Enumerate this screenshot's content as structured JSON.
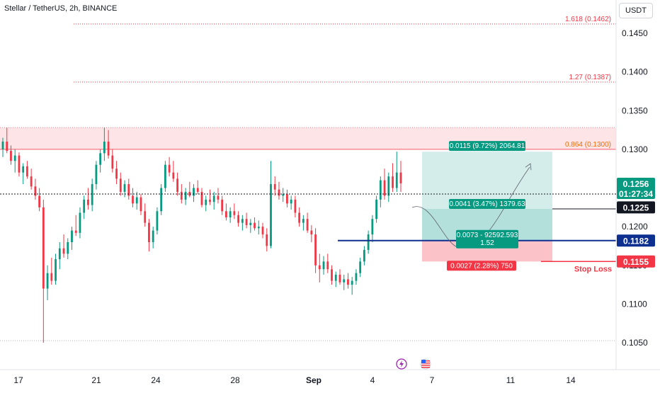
{
  "header": {
    "title": "Stellar / TetherUS, 2h, BINANCE",
    "currency": "USDT"
  },
  "colors": {
    "up": "#089981",
    "down": "#f23645",
    "fib": "#f23645",
    "fib_label_orange": "#ef6c00",
    "target_zone": "#26a69a",
    "stop_zone": "#f23645",
    "entry_line": "#0d2f8f",
    "axis_text": "#131722",
    "grid": "#f0f3fa"
  },
  "chart_data": {
    "type": "candlestick",
    "x_ticks": [
      "17",
      "21",
      "24",
      "28",
      "Sep",
      "4",
      "7",
      "11",
      "14"
    ],
    "y_ticks": [
      "0.1450",
      "0.1400",
      "0.1350",
      "0.1300",
      "0.1250",
      "0.1200",
      "0.1150",
      "0.1100",
      "0.1050"
    ],
    "ylim": [
      0.101,
      0.148
    ],
    "fib_levels": [
      {
        "label": "1.618 (0.1462)",
        "value": 0.1462
      },
      {
        "label": "1.27 (0.1387)",
        "value": 0.1387
      },
      {
        "label": "0.864 (0.1300)",
        "value": 0.13
      }
    ],
    "supply_zone": {
      "from": 0.13,
      "to": 0.1328
    },
    "current_price": {
      "value": 0.1256,
      "label": "0.1256",
      "countdown": "01:27:34"
    },
    "price_markers": [
      {
        "label": "0.1225",
        "value": 0.1225,
        "style": "dark"
      },
      {
        "label": "0.1182",
        "value": 0.1182,
        "style": "blue"
      },
      {
        "label": "0.1155",
        "value": 0.1155,
        "style": "red"
      }
    ],
    "stop_loss_label": "Stop Loss",
    "position": {
      "entry": 0.1182,
      "target": 0.1297,
      "stop": 0.1155,
      "mid": 0.1223,
      "target_label": "0.0115 (9.72%) 2064.81",
      "mid_label": "0.0041 (3.47%) 1379.63",
      "center_label_1": "0.0073 - 92592.593",
      "center_label_2": "1.52",
      "stop_label": "0.0027 (2.28%) 750"
    },
    "candles": [
      [
        0.13,
        0.1315,
        0.129,
        0.131
      ],
      [
        0.131,
        0.1328,
        0.1295,
        0.1298
      ],
      [
        0.1298,
        0.1305,
        0.128,
        0.1285
      ],
      [
        0.1285,
        0.13,
        0.127,
        0.1292
      ],
      [
        0.1292,
        0.1296,
        0.1265,
        0.127
      ],
      [
        0.127,
        0.1282,
        0.1255,
        0.1278
      ],
      [
        0.1278,
        0.1285,
        0.1262,
        0.1265
      ],
      [
        0.1265,
        0.1275,
        0.1248,
        0.1252
      ],
      [
        0.1252,
        0.1262,
        0.1235,
        0.124
      ],
      [
        0.124,
        0.125,
        0.122,
        0.1225
      ],
      [
        0.1225,
        0.1235,
        0.105,
        0.112
      ],
      [
        0.112,
        0.115,
        0.1105,
        0.114
      ],
      [
        0.114,
        0.116,
        0.1125,
        0.113
      ],
      [
        0.113,
        0.1165,
        0.1125,
        0.1158
      ],
      [
        0.1158,
        0.118,
        0.1145,
        0.1172
      ],
      [
        0.1172,
        0.119,
        0.116,
        0.1165
      ],
      [
        0.1165,
        0.1185,
        0.1158,
        0.118
      ],
      [
        0.118,
        0.12,
        0.117,
        0.1195
      ],
      [
        0.1195,
        0.1215,
        0.1188,
        0.1192
      ],
      [
        0.1192,
        0.1225,
        0.1185,
        0.1218
      ],
      [
        0.1218,
        0.124,
        0.121,
        0.1235
      ],
      [
        0.1235,
        0.125,
        0.1222,
        0.1228
      ],
      [
        0.1228,
        0.1262,
        0.122,
        0.1255
      ],
      [
        0.1255,
        0.1285,
        0.1248,
        0.128
      ],
      [
        0.128,
        0.13,
        0.127,
        0.1295
      ],
      [
        0.1295,
        0.1328,
        0.1285,
        0.131
      ],
      [
        0.131,
        0.1325,
        0.1288,
        0.1292
      ],
      [
        0.1292,
        0.13,
        0.127,
        0.1275
      ],
      [
        0.1275,
        0.1285,
        0.1255,
        0.1262
      ],
      [
        0.1262,
        0.127,
        0.124,
        0.1245
      ],
      [
        0.1245,
        0.126,
        0.1238,
        0.1255
      ],
      [
        0.1255,
        0.1262,
        0.1235,
        0.124
      ],
      [
        0.124,
        0.125,
        0.1225,
        0.123
      ],
      [
        0.123,
        0.1245,
        0.1222,
        0.1238
      ],
      [
        0.1238,
        0.1242,
        0.1215,
        0.122
      ],
      [
        0.122,
        0.123,
        0.12,
        0.1205
      ],
      [
        0.1205,
        0.121,
        0.1168,
        0.118
      ],
      [
        0.118,
        0.12,
        0.1172,
        0.1195
      ],
      [
        0.1195,
        0.1225,
        0.119,
        0.122
      ],
      [
        0.122,
        0.1255,
        0.1215,
        0.125
      ],
      [
        0.125,
        0.1285,
        0.1245,
        0.128
      ],
      [
        0.128,
        0.129,
        0.1265,
        0.127
      ],
      [
        0.127,
        0.1285,
        0.1258,
        0.1262
      ],
      [
        0.1262,
        0.127,
        0.124,
        0.1245
      ],
      [
        0.1245,
        0.1255,
        0.123,
        0.1235
      ],
      [
        0.1235,
        0.125,
        0.1228,
        0.1245
      ],
      [
        0.1245,
        0.1258,
        0.1238,
        0.124
      ],
      [
        0.124,
        0.1255,
        0.1232,
        0.125
      ],
      [
        0.125,
        0.126,
        0.1242,
        0.1245
      ],
      [
        0.1245,
        0.125,
        0.1225,
        0.1228
      ],
      [
        0.1228,
        0.124,
        0.122,
        0.1235
      ],
      [
        0.1235,
        0.1248,
        0.1228,
        0.1232
      ],
      [
        0.1232,
        0.1245,
        0.1222,
        0.124
      ],
      [
        0.124,
        0.125,
        0.123,
        0.1235
      ],
      [
        0.1235,
        0.124,
        0.1215,
        0.122
      ],
      [
        0.122,
        0.123,
        0.1208,
        0.1212
      ],
      [
        0.1212,
        0.1225,
        0.1205,
        0.122
      ],
      [
        0.122,
        0.123,
        0.121,
        0.1215
      ],
      [
        0.1215,
        0.122,
        0.12,
        0.1205
      ],
      [
        0.1205,
        0.1215,
        0.1195,
        0.121
      ],
      [
        0.121,
        0.1218,
        0.1198,
        0.1202
      ],
      [
        0.1202,
        0.121,
        0.1192,
        0.1205
      ],
      [
        0.1205,
        0.1212,
        0.1195,
        0.1198
      ],
      [
        0.1198,
        0.1208,
        0.119,
        0.12
      ],
      [
        0.12,
        0.1205,
        0.1185,
        0.119
      ],
      [
        0.119,
        0.1198,
        0.1168,
        0.1175
      ],
      [
        0.1175,
        0.1285,
        0.1172,
        0.1255
      ],
      [
        0.1255,
        0.1265,
        0.124,
        0.1248
      ],
      [
        0.1248,
        0.1258,
        0.1235,
        0.124
      ],
      [
        0.124,
        0.125,
        0.1232,
        0.1242
      ],
      [
        0.1242,
        0.1248,
        0.1225,
        0.123
      ],
      [
        0.123,
        0.124,
        0.1222,
        0.1235
      ],
      [
        0.1235,
        0.124,
        0.1212,
        0.1218
      ],
      [
        0.1218,
        0.1225,
        0.12,
        0.1205
      ],
      [
        0.1205,
        0.1215,
        0.1195,
        0.121
      ],
      [
        0.121,
        0.1218,
        0.1192,
        0.1195
      ],
      [
        0.1195,
        0.1202,
        0.118,
        0.119
      ],
      [
        0.119,
        0.1198,
        0.114,
        0.115
      ],
      [
        0.115,
        0.1165,
        0.1128,
        0.1145
      ],
      [
        0.1145,
        0.1162,
        0.1138,
        0.1155
      ],
      [
        0.1155,
        0.1165,
        0.114,
        0.1145
      ],
      [
        0.1145,
        0.115,
        0.1125,
        0.113
      ],
      [
        0.113,
        0.1142,
        0.1122,
        0.1138
      ],
      [
        0.1138,
        0.1145,
        0.1125,
        0.1128
      ],
      [
        0.1128,
        0.1138,
        0.1118,
        0.1132
      ],
      [
        0.1132,
        0.114,
        0.112,
        0.1125
      ],
      [
        0.1125,
        0.1135,
        0.1112,
        0.113
      ],
      [
        0.113,
        0.1145,
        0.1125,
        0.114
      ],
      [
        0.114,
        0.116,
        0.1135,
        0.1155
      ],
      [
        0.1155,
        0.1175,
        0.115,
        0.117
      ],
      [
        0.117,
        0.1195,
        0.1165,
        0.119
      ],
      [
        0.119,
        0.1215,
        0.118,
        0.121
      ],
      [
        0.121,
        0.124,
        0.1205,
        0.1235
      ],
      [
        0.1235,
        0.1265,
        0.1225,
        0.126
      ],
      [
        0.126,
        0.1275,
        0.1235,
        0.124
      ],
      [
        0.124,
        0.127,
        0.1232,
        0.1265
      ],
      [
        0.1265,
        0.1282,
        0.1245,
        0.125
      ],
      [
        0.125,
        0.1297,
        0.1245,
        0.127
      ],
      [
        0.127,
        0.1285,
        0.1245,
        0.1256
      ]
    ]
  }
}
